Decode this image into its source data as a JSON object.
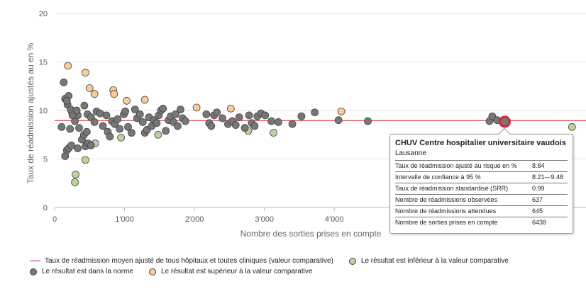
{
  "chart_data": {
    "type": "scatter",
    "title": "",
    "xlabel": "Nombre des sorties prises en compte",
    "ylabel": "Taux de réadmission ajustés au en %",
    "xlim": [
      0,
      7600
    ],
    "ylim": [
      0,
      20
    ],
    "xticks": [
      0,
      1000,
      2000,
      3000,
      4000
    ],
    "xtick_labels": [
      "0",
      "1'000",
      "2'000",
      "3'000",
      "4'000"
    ],
    "yticks": [
      0,
      5,
      10,
      15,
      20
    ],
    "ytick_labels": [
      "0",
      "5",
      "10",
      "15",
      "20"
    ],
    "grid": "horizontal",
    "reference_line": {
      "y": 8.96,
      "label": "Taux de réadmission moyen ajusté de tous hôpitaux et toutes cliniques (valeur comparative)",
      "color": "#d9232e"
    },
    "highlight": {
      "x": 6438,
      "y": 8.84,
      "color": "#d9232e"
    },
    "legend_position": "bottom",
    "series": [
      {
        "name": "Le résultat est inférieur à la valeur comparative",
        "color": "#b9d49a",
        "points": [
          [
            300,
            3.4
          ],
          [
            290,
            2.6
          ],
          [
            440,
            4.9
          ],
          [
            580,
            6.6
          ],
          [
            950,
            7.2
          ],
          [
            1480,
            7.5
          ],
          [
            2770,
            7.9
          ],
          [
            3130,
            7.7
          ],
          [
            7400,
            8.3
          ]
        ]
      },
      {
        "name": "Le résultat est dans la norme",
        "color": "#777777",
        "points": [
          [
            100,
            8.3
          ],
          [
            150,
            5.3
          ],
          [
            175,
            5.9
          ],
          [
            200,
            6.1
          ],
          [
            240,
            6.4
          ],
          [
            330,
            6.1
          ],
          [
            440,
            6.3
          ],
          [
            480,
            6.6
          ],
          [
            520,
            6.4
          ],
          [
            390,
            7.0
          ],
          [
            420,
            7.5
          ],
          [
            460,
            7.8
          ],
          [
            350,
            8.2
          ],
          [
            220,
            8.1
          ],
          [
            290,
            8.9
          ],
          [
            330,
            9.5
          ],
          [
            250,
            9.8
          ],
          [
            185,
            10.6
          ],
          [
            150,
            11.2
          ],
          [
            200,
            11.5
          ],
          [
            230,
            10.1
          ],
          [
            255,
            9.5
          ],
          [
            315,
            10.0
          ],
          [
            130,
            12.9
          ],
          [
            175,
            11.0
          ],
          [
            425,
            10.5
          ],
          [
            470,
            9.6
          ],
          [
            520,
            9.3
          ],
          [
            570,
            8.8
          ],
          [
            600,
            9.9
          ],
          [
            650,
            9.7
          ],
          [
            690,
            8.4
          ],
          [
            740,
            9.5
          ],
          [
            760,
            7.8
          ],
          [
            790,
            7.3
          ],
          [
            820,
            8.9
          ],
          [
            860,
            8.6
          ],
          [
            900,
            9.1
          ],
          [
            930,
            8.1
          ],
          [
            990,
            9.6
          ],
          [
            1010,
            9.9
          ],
          [
            1050,
            8.3
          ],
          [
            1100,
            7.7
          ],
          [
            1150,
            10.1
          ],
          [
            1180,
            9.2
          ],
          [
            1220,
            9.6
          ],
          [
            1260,
            8.8
          ],
          [
            1290,
            7.7
          ],
          [
            1320,
            8.0
          ],
          [
            1350,
            9.3
          ],
          [
            1390,
            8.4
          ],
          [
            1420,
            9.0
          ],
          [
            1460,
            8.7
          ],
          [
            1490,
            9.5
          ],
          [
            1520,
            10.0
          ],
          [
            1550,
            10.2
          ],
          [
            1590,
            7.9
          ],
          [
            1630,
            9.0
          ],
          [
            1660,
            9.4
          ],
          [
            1700,
            8.8
          ],
          [
            1730,
            9.6
          ],
          [
            1760,
            8.4
          ],
          [
            1800,
            10.1
          ],
          [
            1830,
            9.2
          ],
          [
            1870,
            8.9
          ],
          [
            2170,
            9.6
          ],
          [
            2210,
            8.7
          ],
          [
            2240,
            8.4
          ],
          [
            2280,
            9.5
          ],
          [
            2320,
            9.8
          ],
          [
            2400,
            9.2
          ],
          [
            2480,
            8.6
          ],
          [
            2540,
            8.9
          ],
          [
            2590,
            8.5
          ],
          [
            2640,
            9.3
          ],
          [
            2720,
            8.2
          ],
          [
            2780,
            9.5
          ],
          [
            2820,
            8.7
          ],
          [
            2860,
            8.4
          ],
          [
            2900,
            9.4
          ],
          [
            2950,
            9.7
          ],
          [
            3010,
            9.5
          ],
          [
            3100,
            8.9
          ],
          [
            3200,
            8.8
          ],
          [
            3400,
            8.6
          ],
          [
            3530,
            9.4
          ],
          [
            3720,
            9.8
          ],
          [
            4060,
            9.0
          ],
          [
            4480,
            8.9
          ],
          [
            6220,
            8.9
          ],
          [
            6260,
            9.4
          ],
          [
            6330,
            9.0
          ],
          [
            6438,
            8.84
          ]
        ]
      },
      {
        "name": "Le résultat est supérieur à la valeur comparative",
        "color": "#f8cb9a",
        "points": [
          [
            190,
            14.6
          ],
          [
            440,
            13.9
          ],
          [
            500,
            12.3
          ],
          [
            570,
            11.7
          ],
          [
            840,
            12.1
          ],
          [
            850,
            11.7
          ],
          [
            1030,
            11.0
          ],
          [
            1290,
            11.1
          ],
          [
            2030,
            10.3
          ],
          [
            2520,
            10.2
          ],
          [
            4100,
            9.9
          ]
        ]
      }
    ]
  },
  "tooltip": {
    "title": "CHUV Centre hospitalier universitaire vaudois",
    "subtitle": "Lausanne",
    "rows": [
      {
        "label": "Taux de réadmission ajusté au risque en %",
        "value": "8.84"
      },
      {
        "label": "Intervalle de confiance à 95 %",
        "value": "8.21—9.48"
      },
      {
        "label": "Taux de réadmission standardisé (SRR)",
        "value": "0.99"
      },
      {
        "label": "Nombre de réadmissions observées",
        "value": "637"
      },
      {
        "label": "Nombre de réadmissions attendues",
        "value": "645"
      },
      {
        "label": "Nombre de sorties prises en compte",
        "value": "6438"
      }
    ]
  },
  "legend": {
    "line_label": "Taux de réadmission moyen ajusté de tous hôpitaux et toutes cliniques (valeur comparative)",
    "below_label": "Le résultat est inférieur à la valeur comparative",
    "norm_label": "Le résultat est dans la norme",
    "above_label": "Le résultat est supérieur à la valeur comparative"
  },
  "colors": {
    "below": "#b9d49a",
    "norm": "#777777",
    "above": "#f8cb9a",
    "reference": "#d9232e"
  }
}
